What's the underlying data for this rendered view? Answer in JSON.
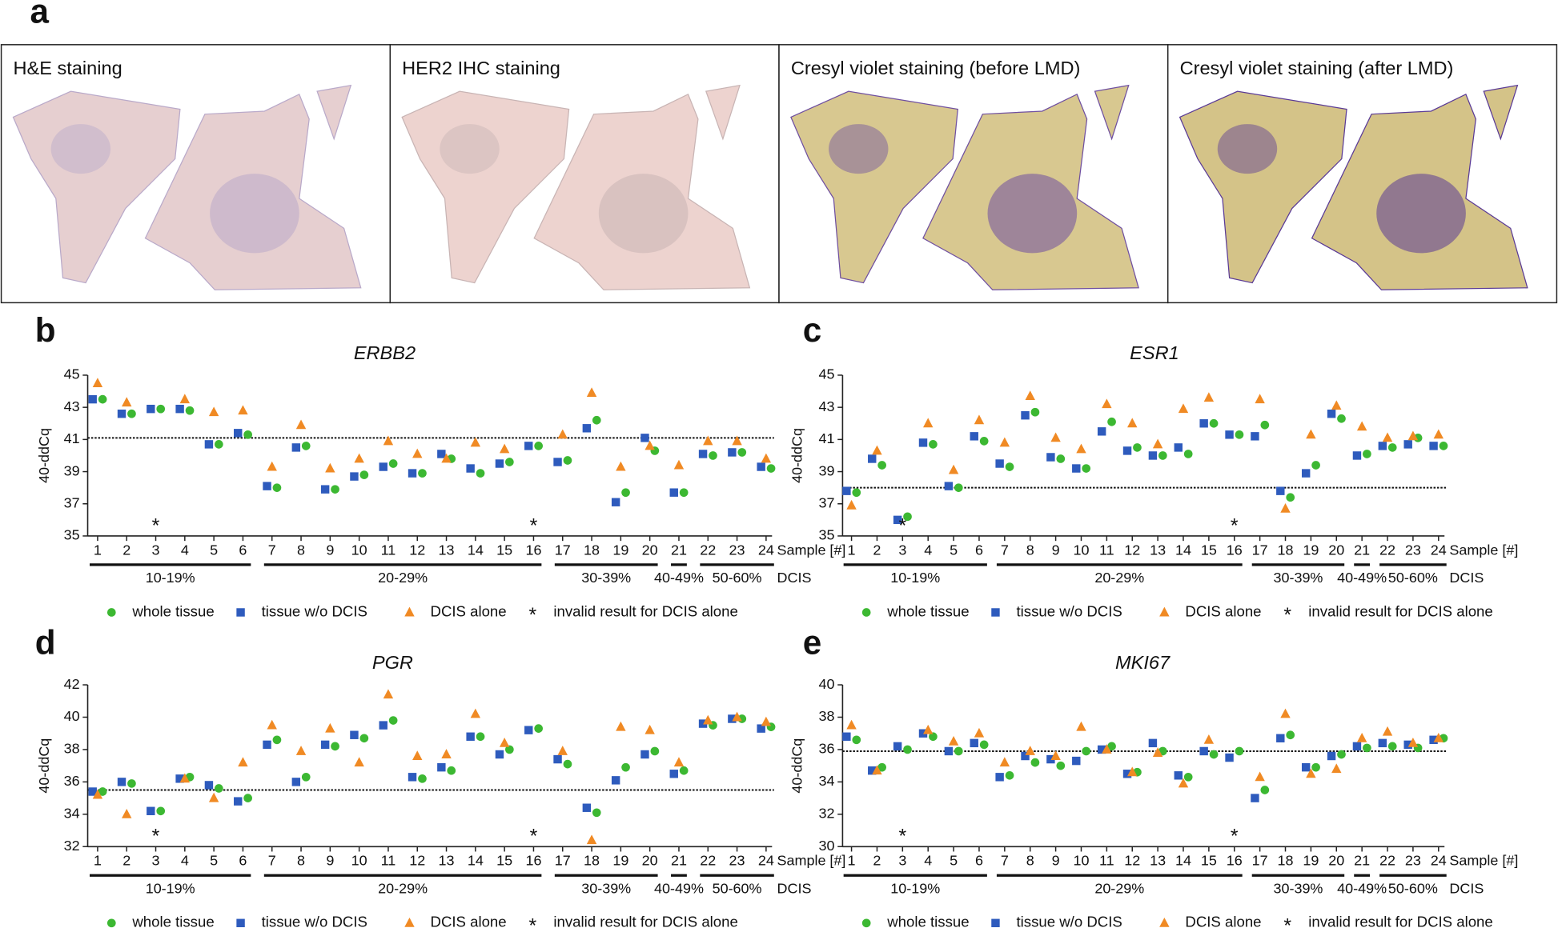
{
  "figure": {
    "panel_a": {
      "letter": "a",
      "captions": [
        "H&E staining",
        "HER2 IHC staining",
        "Cresyl violet staining (before LMD)",
        "Cresyl violet staining (after LMD)"
      ]
    }
  },
  "chart_data": [
    {
      "type": "scatter",
      "panel": "b",
      "title": "ERBB2",
      "y_label": "40-ddCq",
      "x_label": "Sample [#]",
      "group_title": "DCIS",
      "categories": [
        "1",
        "2",
        "3",
        "4",
        "5",
        "6",
        "7",
        "8",
        "9",
        "10",
        "11",
        "12",
        "13",
        "14",
        "15",
        "16",
        "17",
        "18",
        "19",
        "20",
        "21",
        "22",
        "23",
        "24"
      ],
      "ylim": [
        35,
        45
      ],
      "yticks": [
        35,
        37,
        39,
        41,
        43,
        45
      ],
      "threshold": 41.1,
      "series": [
        {
          "name": "whole tissue",
          "color": "#3cb832",
          "marker": "circle",
          "values": [
            43.5,
            42.6,
            42.9,
            42.8,
            40.7,
            41.3,
            38.0,
            40.6,
            37.9,
            38.8,
            39.5,
            38.9,
            39.8,
            38.9,
            39.6,
            40.6,
            39.7,
            42.2,
            37.7,
            40.3,
            37.7,
            40.0,
            40.2,
            39.2
          ]
        },
        {
          "name": "tissue w/o DCIS",
          "color": "#2e5bbd",
          "marker": "square",
          "values": [
            43.5,
            42.6,
            42.9,
            42.9,
            40.7,
            41.4,
            38.1,
            40.5,
            37.9,
            38.7,
            39.3,
            38.9,
            40.1,
            39.2,
            39.5,
            40.6,
            39.6,
            41.7,
            37.1,
            41.1,
            37.7,
            40.1,
            40.2,
            39.3
          ]
        },
        {
          "name": "DCIS alone",
          "color": "#f08a24",
          "marker": "triangle",
          "values": [
            44.5,
            43.3,
            null,
            43.5,
            42.7,
            42.8,
            39.3,
            41.9,
            39.2,
            39.8,
            40.9,
            40.1,
            39.8,
            40.8,
            40.4,
            null,
            41.3,
            43.9,
            39.3,
            40.6,
            39.4,
            40.9,
            40.9,
            39.8
          ]
        }
      ],
      "flags": {
        "name": "invalid result for DCIS alone",
        "symbol": "*",
        "at": [
          "3",
          "16"
        ]
      },
      "groups": [
        {
          "label": "10-19%",
          "first": "1",
          "last": "6"
        },
        {
          "label": "20-29%",
          "first": "7",
          "last": "16"
        },
        {
          "label": "30-39%",
          "first": "17",
          "last": "20"
        },
        {
          "label": "40-49%",
          "first": "21",
          "last": "21"
        },
        {
          "label": "50-60%",
          "first": "22",
          "last": "24"
        }
      ]
    },
    {
      "type": "scatter",
      "panel": "c",
      "title": "ESR1",
      "y_label": "40-ddCq",
      "x_label": "Sample [#]",
      "group_title": "DCIS",
      "categories": [
        "1",
        "2",
        "3",
        "4",
        "5",
        "6",
        "7",
        "8",
        "9",
        "10",
        "11",
        "12",
        "13",
        "14",
        "15",
        "16",
        "17",
        "18",
        "19",
        "20",
        "21",
        "22",
        "23",
        "24"
      ],
      "ylim": [
        35,
        45
      ],
      "yticks": [
        35,
        37,
        39,
        41,
        43,
        45
      ],
      "threshold": 38.0,
      "series": [
        {
          "name": "whole tissue",
          "color": "#3cb832",
          "marker": "circle",
          "values": [
            37.7,
            39.4,
            36.2,
            40.7,
            38.0,
            40.9,
            39.3,
            42.7,
            39.8,
            39.2,
            42.1,
            40.5,
            40.0,
            40.1,
            42.0,
            41.3,
            41.9,
            37.4,
            39.4,
            42.3,
            40.1,
            40.5,
            41.1,
            40.6
          ]
        },
        {
          "name": "tissue w/o DCIS",
          "color": "#2e5bbd",
          "marker": "square",
          "values": [
            37.8,
            39.8,
            36.0,
            40.8,
            38.1,
            41.2,
            39.5,
            42.5,
            39.9,
            39.2,
            41.5,
            40.3,
            40.0,
            40.5,
            42.0,
            41.3,
            41.2,
            37.8,
            38.9,
            42.6,
            40.0,
            40.6,
            40.7,
            40.6
          ]
        },
        {
          "name": "DCIS alone",
          "color": "#f08a24",
          "marker": "triangle",
          "values": [
            36.9,
            40.3,
            null,
            42.0,
            39.1,
            42.2,
            40.8,
            43.7,
            41.1,
            40.4,
            43.2,
            42.0,
            40.7,
            42.9,
            43.6,
            null,
            43.5,
            36.7,
            41.3,
            43.1,
            41.8,
            41.1,
            41.2,
            41.3
          ]
        }
      ],
      "flags": {
        "name": "invalid result for DCIS alone",
        "symbol": "*",
        "at": [
          "3",
          "16"
        ]
      },
      "groups": [
        {
          "label": "10-19%",
          "first": "1",
          "last": "6"
        },
        {
          "label": "20-29%",
          "first": "7",
          "last": "16"
        },
        {
          "label": "30-39%",
          "first": "17",
          "last": "20"
        },
        {
          "label": "40-49%",
          "first": "21",
          "last": "21"
        },
        {
          "label": "50-60%",
          "first": "22",
          "last": "24"
        }
      ]
    },
    {
      "type": "scatter",
      "panel": "d",
      "title": "PGR",
      "y_label": "40-ddCq",
      "x_label": "Sample [#]",
      "group_title": "DCIS",
      "categories": [
        "1",
        "2",
        "3",
        "4",
        "5",
        "6",
        "7",
        "8",
        "9",
        "10",
        "11",
        "12",
        "13",
        "14",
        "15",
        "16",
        "17",
        "18",
        "19",
        "20",
        "21",
        "22",
        "23",
        "24"
      ],
      "ylim": [
        32,
        42
      ],
      "yticks": [
        32,
        34,
        36,
        38,
        40,
        42
      ],
      "threshold": 35.5,
      "series": [
        {
          "name": "whole tissue",
          "color": "#3cb832",
          "marker": "circle",
          "values": [
            35.4,
            35.9,
            34.2,
            36.3,
            35.6,
            35.0,
            38.6,
            36.3,
            38.2,
            38.7,
            39.8,
            36.2,
            36.7,
            38.8,
            38.0,
            39.3,
            37.1,
            34.1,
            36.9,
            37.9,
            36.7,
            39.5,
            39.9,
            39.4
          ]
        },
        {
          "name": "tissue w/o DCIS",
          "color": "#2e5bbd",
          "marker": "square",
          "values": [
            35.4,
            36.0,
            34.2,
            36.2,
            35.8,
            34.8,
            38.3,
            36.0,
            38.3,
            38.9,
            39.5,
            36.3,
            36.9,
            38.8,
            37.7,
            39.2,
            37.4,
            34.4,
            36.1,
            37.7,
            36.5,
            39.6,
            39.9,
            39.3
          ]
        },
        {
          "name": "DCIS alone",
          "color": "#f08a24",
          "marker": "triangle",
          "values": [
            35.2,
            34.0,
            null,
            36.2,
            35.0,
            37.2,
            39.5,
            37.9,
            39.3,
            37.2,
            41.4,
            37.6,
            37.7,
            40.2,
            38.4,
            null,
            37.9,
            32.4,
            39.4,
            39.2,
            37.2,
            39.8,
            40.0,
            39.7
          ]
        }
      ],
      "flags": {
        "name": "invalid result for DCIS alone",
        "symbol": "*",
        "at": [
          "3",
          "16"
        ]
      },
      "groups": [
        {
          "label": "10-19%",
          "first": "1",
          "last": "6"
        },
        {
          "label": "20-29%",
          "first": "7",
          "last": "16"
        },
        {
          "label": "30-39%",
          "first": "17",
          "last": "20"
        },
        {
          "label": "40-49%",
          "first": "21",
          "last": "21"
        },
        {
          "label": "50-60%",
          "first": "22",
          "last": "24"
        }
      ]
    },
    {
      "type": "scatter",
      "panel": "e",
      "title": "MKI67",
      "y_label": "40-ddCq",
      "x_label": "Sample [#]",
      "group_title": "DCIS",
      "categories": [
        "1",
        "2",
        "3",
        "4",
        "5",
        "6",
        "7",
        "8",
        "9",
        "10",
        "11",
        "12",
        "13",
        "14",
        "15",
        "16",
        "17",
        "18",
        "19",
        "20",
        "21",
        "22",
        "23",
        "24"
      ],
      "ylim": [
        30,
        40
      ],
      "yticks": [
        30,
        32,
        34,
        36,
        38,
        40
      ],
      "threshold": 35.9,
      "series": [
        {
          "name": "whole tissue",
          "color": "#3cb832",
          "marker": "circle",
          "values": [
            36.6,
            34.9,
            36.0,
            36.8,
            35.9,
            36.3,
            34.4,
            35.2,
            35.0,
            35.9,
            36.2,
            34.6,
            35.9,
            34.3,
            35.7,
            35.9,
            33.5,
            36.9,
            34.9,
            35.7,
            36.1,
            36.2,
            36.1,
            36.7
          ]
        },
        {
          "name": "tissue w/o DCIS",
          "color": "#2e5bbd",
          "marker": "square",
          "values": [
            36.8,
            34.7,
            36.2,
            37.0,
            35.9,
            36.4,
            34.3,
            35.6,
            35.4,
            35.3,
            36.0,
            34.5,
            36.4,
            34.4,
            35.9,
            35.5,
            33.0,
            36.7,
            34.9,
            35.6,
            36.2,
            36.4,
            36.3,
            36.6
          ]
        },
        {
          "name": "DCIS alone",
          "color": "#f08a24",
          "marker": "triangle",
          "values": [
            37.5,
            34.7,
            null,
            37.2,
            36.5,
            37.0,
            35.2,
            35.9,
            35.6,
            37.4,
            36.0,
            34.6,
            35.8,
            33.9,
            36.6,
            null,
            34.3,
            38.2,
            34.5,
            34.8,
            36.7,
            37.1,
            36.4,
            36.7
          ]
        }
      ],
      "flags": {
        "name": "invalid result for DCIS alone",
        "symbol": "*",
        "at": [
          "3",
          "16"
        ]
      },
      "groups": [
        {
          "label": "10-19%",
          "first": "1",
          "last": "6"
        },
        {
          "label": "20-29%",
          "first": "7",
          "last": "16"
        },
        {
          "label": "30-39%",
          "first": "17",
          "last": "20"
        },
        {
          "label": "40-49%",
          "first": "21",
          "last": "21"
        },
        {
          "label": "50-60%",
          "first": "22",
          "last": "24"
        }
      ]
    }
  ]
}
